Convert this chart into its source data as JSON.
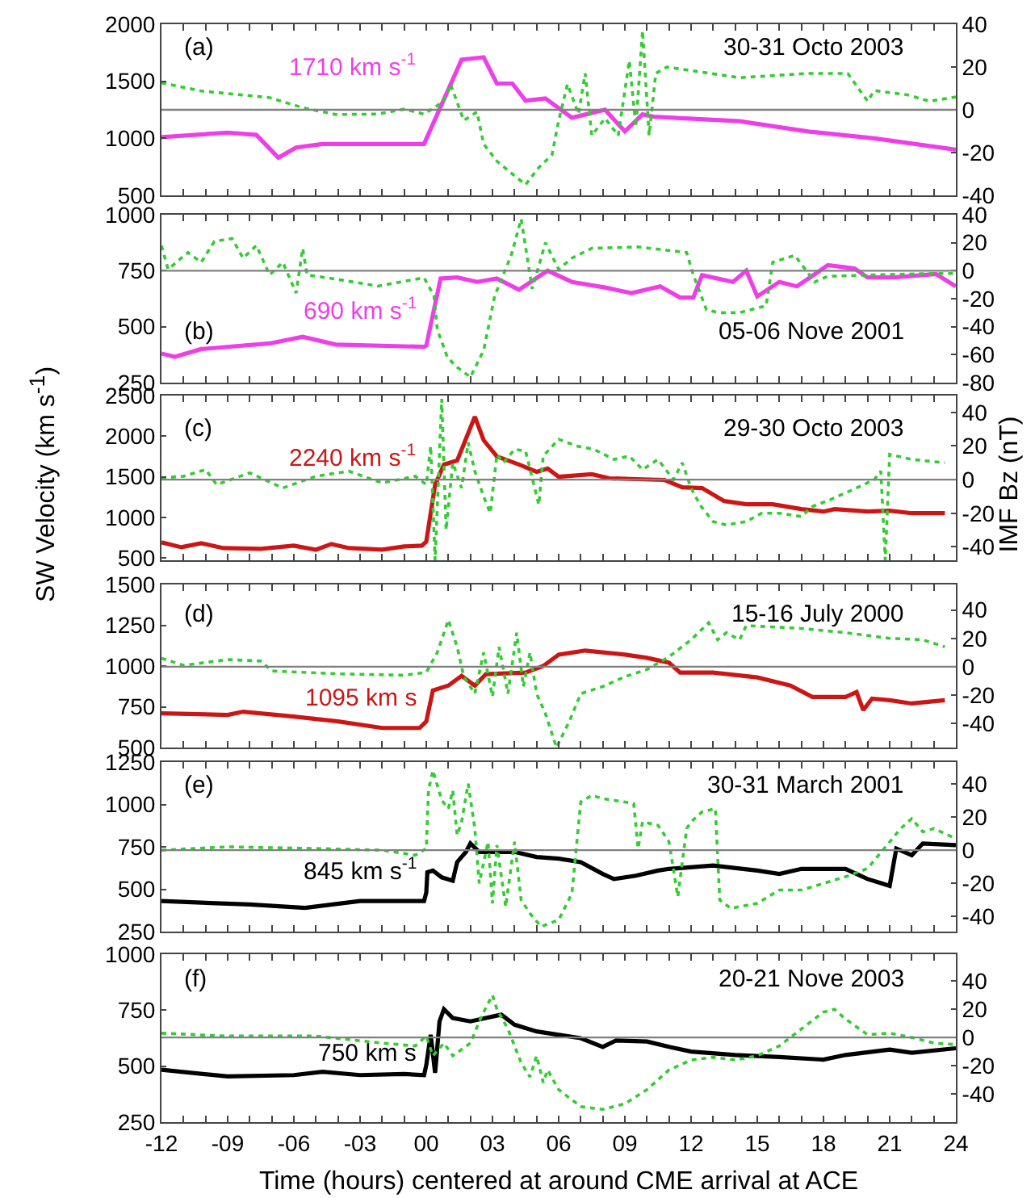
{
  "chart_data": [
    {
      "type": "line",
      "xlim": [
        -12,
        24
      ],
      "xticks": [
        -12,
        -11,
        -10,
        -9,
        -8,
        -7,
        -6,
        -5,
        -4,
        -3,
        -2,
        -1,
        0,
        1,
        2,
        3,
        4,
        5,
        6,
        7,
        8,
        9,
        10,
        11,
        12,
        13,
        14,
        15,
        16,
        17,
        18,
        19,
        20,
        21,
        22,
        23,
        24
      ],
      "ylim": [
        500,
        2000
      ],
      "yticks": [
        500,
        1000,
        1500,
        2000
      ],
      "y2lim": [
        -40,
        40
      ],
      "y2ticks": [
        -40,
        -20,
        0,
        20,
        40
      ],
      "tick_labels": "y",
      "annotations": [
        "(a)",
        "30-31 Octo 2003"
      ],
      "ref_lines": [
        {
          "axis": "y2",
          "value": 0,
          "color": "#808080"
        }
      ],
      "series": [
        {
          "name": "1710 km s$^{-1}$",
          "color": "#ee3ee8",
          "x": [
            -12,
            -9,
            -7.7,
            -6.7,
            -5.9,
            -4.7,
            -0.1,
            1.6,
            2.6,
            3.2,
            3.9,
            4.5,
            5.4,
            6.6,
            8.1,
            9.0,
            9.8,
            10.3,
            11.2,
            14.2,
            17.3,
            20.3,
            24
          ],
          "values": [
            1010,
            1050,
            1030,
            830,
            920,
            950,
            950,
            1690,
            1710,
            1480,
            1480,
            1330,
            1350,
            1180,
            1250,
            1060,
            1210,
            1190,
            1180,
            1150,
            1060,
            1000,
            900
          ]
        },
        {
          "color": "#33cc33",
          "axis": "y2",
          "line_style": "dotted",
          "x": [
            -12,
            -10.2,
            -8.6,
            -7.1,
            -5.6,
            -4.1,
            -2.2,
            -1.0,
            -0.1,
            0.8,
            1.1,
            1.7,
            2.3,
            2.6,
            3.2,
            3.9,
            4.5,
            5.1,
            5.7,
            6.0,
            6.4,
            6.9,
            7.2,
            7.5,
            8.1,
            8.7,
            9.2,
            9.5,
            9.8,
            10.1,
            10.4,
            10.9,
            14.2,
            17.3,
            19.1,
            20.0,
            20.3,
            21.8,
            22.8,
            24
          ],
          "values": [
            12.6,
            8.8,
            7.2,
            5.7,
            1,
            -2.2,
            -2,
            0.3,
            -2,
            4,
            12,
            -5,
            -1,
            -16,
            -24,
            -30,
            -35,
            -27,
            -21,
            -5,
            12,
            -2,
            17,
            -12,
            -4,
            -12,
            23,
            -8,
            37,
            -12,
            17,
            20,
            15,
            17,
            17,
            4,
            9,
            7,
            4,
            6
          ]
        }
      ]
    },
    {
      "type": "line",
      "xlim": [
        -12,
        24
      ],
      "xticks": [
        -12,
        -11,
        -10,
        -9,
        -8,
        -7,
        -6,
        -5,
        -4,
        -3,
        -2,
        -1,
        0,
        1,
        2,
        3,
        4,
        5,
        6,
        7,
        8,
        9,
        10,
        11,
        12,
        13,
        14,
        15,
        16,
        17,
        18,
        19,
        20,
        21,
        22,
        23,
        24
      ],
      "ylim": [
        250,
        1000
      ],
      "yticks": [
        250,
        500,
        750,
        1000
      ],
      "y2lim": [
        -80,
        40
      ],
      "y2ticks": [
        -80,
        -60,
        -40,
        -20,
        0,
        20,
        40
      ],
      "tick_labels": "y",
      "annotations": [
        "(b)",
        "05-06 Nove 2001"
      ],
      "ref_lines": [
        {
          "axis": "y2",
          "value": 0,
          "color": "#808080"
        }
      ],
      "series": [
        {
          "name": "690 km s$^{-1}$",
          "color": "#ee3ee8",
          "x": [
            -12,
            -11.4,
            -10.2,
            -7.1,
            -5.6,
            -4.1,
            -0.1,
            0,
            0.65,
            1.4,
            2.3,
            3.2,
            4.2,
            5.5,
            6.6,
            8.1,
            9.3,
            10.6,
            11.5,
            12.1,
            12.5,
            13.9,
            14.5,
            15.0,
            16.0,
            16.8,
            18.2,
            19.4,
            20.0,
            21.2,
            23.1,
            24
          ],
          "values": [
            380,
            365,
            400,
            425,
            455,
            420,
            410,
            415,
            715,
            720,
            700,
            715,
            665,
            750,
            700,
            675,
            650,
            680,
            630,
            630,
            730,
            700,
            750,
            635,
            700,
            680,
            775,
            760,
            720,
            720,
            735,
            680
          ]
        },
        {
          "color": "#33cc33",
          "axis": "y2",
          "line_style": "dotted",
          "x": [
            -12,
            -11.7,
            -10.8,
            -10.2,
            -9.6,
            -8.8,
            -8.3,
            -7.7,
            -7.1,
            -6.5,
            -5.9,
            -5.6,
            -5.4,
            -4.1,
            -2.2,
            -0.1,
            0.35,
            0.5,
            0.96,
            1.4,
            2.0,
            2.6,
            3.1,
            3.85,
            4.3,
            4.8,
            5.4,
            6.0,
            6.6,
            7.5,
            9.6,
            11.8,
            12.1,
            12.7,
            13.3,
            14.2,
            15.4,
            15.7,
            16.7,
            17.6,
            18.2,
            20.3,
            22.8,
            24
          ],
          "values": [
            18,
            1,
            13,
            6,
            21,
            23,
            9,
            18,
            -3,
            6,
            -16,
            16,
            -3,
            -6,
            -11,
            -5,
            -18,
            -42,
            -62,
            -69,
            -76,
            -57,
            -18,
            11,
            37,
            -13,
            20,
            1,
            9,
            16,
            17,
            13,
            -3,
            -28,
            -30,
            -30,
            -25,
            6,
            11,
            -8,
            -4,
            -3,
            -2,
            -2
          ]
        }
      ]
    },
    {
      "type": "line",
      "xlim": [
        -12,
        24
      ],
      "xticks": [
        -12,
        -11,
        -10,
        -9,
        -8,
        -7,
        -6,
        -5,
        -4,
        -3,
        -2,
        -1,
        0,
        1,
        2,
        3,
        4,
        5,
        6,
        7,
        8,
        9,
        10,
        11,
        12,
        13,
        14,
        15,
        16,
        17,
        18,
        19,
        20,
        21,
        22,
        23,
        24
      ],
      "ylim": [
        470,
        2500
      ],
      "yticks": [
        500,
        1000,
        1500,
        2000,
        2500
      ],
      "y2lim": [
        -48,
        50
      ],
      "y2ticks": [
        -40,
        -20,
        0,
        20,
        40
      ],
      "tick_labels": "y",
      "ylabel": "SW Velocity (km s$^{-1}$)",
      "y2label": "IMF Bz (nT)",
      "annotations": [
        "(c)",
        "29-30 Octo 2003"
      ],
      "ref_lines": [
        {
          "axis": "y2",
          "value": 0,
          "color": "#808080"
        }
      ],
      "series": [
        {
          "name": "2240 km s$^{-1}$",
          "color": "#cc1616",
          "x": [
            -12,
            -11.1,
            -10.2,
            -9.2,
            -7.5,
            -6,
            -5,
            -4.3,
            -3.5,
            -2,
            -1,
            -0.2,
            0,
            0.4,
            0.8,
            1.4,
            1.7,
            2.2,
            2.6,
            3.2,
            4.2,
            5.0,
            5.5,
            6.0,
            7.5,
            8.3,
            9.5,
            10.8,
            11.6,
            12.5,
            13.5,
            14.5,
            15.7,
            17,
            18,
            18.5,
            20,
            21,
            22,
            23.5
          ],
          "values": [
            690,
            630,
            680,
            620,
            610,
            650,
            600,
            670,
            620,
            600,
            640,
            650,
            700,
            1400,
            1650,
            1700,
            1900,
            2240,
            1950,
            1750,
            1650,
            1560,
            1600,
            1500,
            1530,
            1480,
            1470,
            1460,
            1370,
            1360,
            1200,
            1160,
            1160,
            1100,
            1070,
            1100,
            1070,
            1080,
            1050,
            1050
          ]
        },
        {
          "color": "#33cc33",
          "axis": "y2",
          "line_style": "dotted",
          "x": [
            -12,
            -11,
            -10,
            -9.5,
            -8,
            -6.5,
            -5,
            -3.5,
            -2,
            -0.5,
            0,
            0.2,
            0.4,
            0.7,
            0.9,
            1.2,
            1.6,
            1.9,
            2.2,
            2.6,
            2.9,
            3.2,
            3.5,
            4.0,
            4.5,
            5.1,
            5.3,
            6.0,
            6.8,
            7.6,
            8.5,
            9.2,
            9.8,
            10.5,
            11.2,
            11.6,
            12,
            12.4,
            13,
            13.6,
            14.5,
            15.2,
            16,
            17,
            17.5,
            18.3,
            19.5,
            20.3,
            20.6,
            20.8,
            21,
            22,
            23.5
          ],
          "values": [
            1,
            2,
            6,
            -3,
            4,
            -5,
            2,
            5,
            -2,
            2,
            -3,
            20,
            -48,
            48,
            -30,
            10,
            -5,
            22,
            5,
            -10,
            -20,
            15,
            10,
            18,
            17,
            -15,
            14,
            24,
            20,
            18,
            12,
            14,
            6,
            12,
            0,
            10,
            -5,
            -15,
            -25,
            -27,
            -25,
            -20,
            -20,
            -22,
            -16,
            -12,
            -5,
            0,
            5,
            -48,
            15,
            12,
            10
          ]
        }
      ]
    },
    {
      "type": "line",
      "xlim": [
        -12,
        24
      ],
      "xticks": [
        -12,
        -11,
        -10,
        -9,
        -8,
        -7,
        -6,
        -5,
        -4,
        -3,
        -2,
        -1,
        0,
        1,
        2,
        3,
        4,
        5,
        6,
        7,
        8,
        9,
        10,
        11,
        12,
        13,
        14,
        15,
        16,
        17,
        18,
        19,
        20,
        21,
        22,
        23,
        24
      ],
      "ylim": [
        500,
        1500
      ],
      "yticks": [
        500,
        750,
        1000,
        1250,
        1500
      ],
      "y2lim": [
        -57,
        58
      ],
      "y2ticks": [
        -40,
        -20,
        0,
        20,
        40
      ],
      "tick_labels": "y",
      "annotations": [
        "(d)",
        "15-16 July 2000"
      ],
      "ref_lines": [
        {
          "axis": "y2",
          "value": 0,
          "color": "#808080"
        }
      ],
      "series": [
        {
          "name": "1095 km s",
          "color": "#cc1616",
          "x": [
            -12,
            -9,
            -8.3,
            -6,
            -4,
            -2,
            -0.3,
            0,
            0.3,
            1,
            1.6,
            2.2,
            2.7,
            4.5,
            5.3,
            6,
            6.5,
            7.2,
            9,
            10,
            11,
            11.5,
            13,
            15,
            16.5,
            17.5,
            19,
            19.5,
            19.8,
            20.2,
            21,
            22,
            23.5
          ],
          "values": [
            710,
            700,
            720,
            690,
            660,
            620,
            620,
            660,
            850,
            880,
            940,
            880,
            950,
            960,
            1000,
            1070,
            1080,
            1095,
            1070,
            1050,
            1020,
            960,
            960,
            930,
            880,
            810,
            810,
            840,
            730,
            800,
            790,
            770,
            790
          ]
        },
        {
          "color": "#33cc33",
          "axis": "y2",
          "line_style": "dotted",
          "x": [
            -12,
            -11,
            -9,
            -7.5,
            -7,
            -4,
            -1,
            0,
            0.5,
            1.0,
            1.4,
            1.7,
            2.2,
            2.6,
            3.0,
            3.3,
            3.7,
            4.1,
            4.4,
            4.7,
            5.0,
            5.4,
            5.9,
            6.5,
            7,
            8,
            9,
            10,
            11,
            12,
            12.8,
            13.2,
            13.6,
            14.2,
            14.5,
            17,
            19,
            21,
            22.5,
            23.5
          ],
          "values": [
            6,
            1,
            5,
            4,
            -3,
            -5,
            -6,
            -4,
            10,
            33,
            14,
            -7,
            -19,
            10,
            -21,
            14,
            -19,
            24,
            -14,
            10,
            -19,
            -33,
            -57,
            -38,
            -19,
            -14,
            -7,
            -2,
            7,
            19,
            31,
            19,
            24,
            19,
            29,
            27,
            24,
            20,
            19,
            14
          ]
        }
      ]
    },
    {
      "type": "line",
      "xlim": [
        -12,
        24
      ],
      "xticks": [
        -12,
        -11,
        -10,
        -9,
        -8,
        -7,
        -6,
        -5,
        -4,
        -3,
        -2,
        -1,
        0,
        1,
        2,
        3,
        4,
        5,
        6,
        7,
        8,
        9,
        10,
        11,
        12,
        13,
        14,
        15,
        16,
        17,
        18,
        19,
        20,
        21,
        22,
        23,
        24
      ],
      "ylim": [
        250,
        1250
      ],
      "yticks": [
        250,
        500,
        750,
        1000,
        1250
      ],
      "y2lim": [
        -49,
        53
      ],
      "y2ticks": [
        -40,
        -20,
        0,
        20,
        40
      ],
      "tick_labels": "y",
      "annotations": [
        "(e)",
        "30-31 March 2001"
      ],
      "ref_lines": [
        {
          "axis": "y2",
          "value": 0,
          "color": "#808080"
        }
      ],
      "series": [
        {
          "name": "845 km s$^{-1}$",
          "color": "#000000",
          "x": [
            -12,
            -8,
            -5.5,
            -3,
            -0.1,
            0,
            0.05,
            0.3,
            0.7,
            1.2,
            1.4,
            1.8,
            2.0,
            2.4,
            3,
            4,
            5,
            6,
            7,
            8,
            8.5,
            9.5,
            10.5,
            11,
            13,
            15,
            16,
            17,
            19,
            20,
            21,
            21.3,
            22,
            22.5,
            24
          ],
          "values": [
            430,
            410,
            390,
            430,
            430,
            480,
            600,
            610,
            570,
            550,
            660,
            720,
            770,
            720,
            720,
            720,
            690,
            680,
            660,
            590,
            560,
            580,
            610,
            620,
            640,
            610,
            590,
            620,
            620,
            560,
            520,
            740,
            700,
            770,
            760
          ]
        },
        {
          "color": "#33cc33",
          "axis": "y2",
          "line_style": "dotted",
          "x": [
            -12,
            -9,
            -5,
            -2,
            -0.5,
            0,
            0.1,
            0.3,
            0.7,
            1.0,
            1.2,
            1.4,
            1.6,
            1.9,
            2.2,
            2.4,
            2.8,
            3.0,
            3.2,
            3.6,
            4.0,
            4.3,
            4.7,
            5.2,
            6,
            6.6,
            7.0,
            7.5,
            8,
            9,
            9.4,
            9.6,
            9.8,
            10.5,
            11,
            11.4,
            11.8,
            12,
            12.5,
            13.1,
            13.3,
            13.8,
            15,
            16,
            17,
            18,
            19,
            20,
            21,
            21.5,
            22,
            22.5,
            23,
            24
          ],
          "values": [
            0,
            2,
            1,
            0,
            -3,
            1,
            36,
            48,
            30,
            25,
            36,
            9,
            17,
            40,
            13,
            -20,
            5,
            -32,
            3,
            -34,
            5,
            -30,
            -38,
            -46,
            -42,
            -26,
            29,
            33,
            31,
            29,
            28,
            1,
            17,
            15,
            5,
            -28,
            13,
            17,
            23,
            25,
            -30,
            -35,
            -32,
            -24,
            -24,
            -20,
            -16,
            -11,
            5,
            13,
            19,
            11,
            13,
            7
          ]
        }
      ]
    },
    {
      "type": "line",
      "xlim": [
        -12,
        24
      ],
      "xticks": [
        -12,
        {
          "value": -11,
          "label": null
        },
        {
          "value": -10,
          "label": null
        },
        {
          "value": -9,
          "label": "-09"
        },
        {
          "value": -8,
          "label": null
        },
        {
          "value": -7,
          "label": null
        },
        {
          "value": -6,
          "label": "-06"
        },
        {
          "value": -5,
          "label": null
        },
        {
          "value": -4,
          "label": null
        },
        {
          "value": -3,
          "label": "-03"
        },
        {
          "value": -2,
          "label": null
        },
        {
          "value": -1,
          "label": null
        },
        {
          "value": 0,
          "label": "00"
        },
        {
          "value": 1,
          "label": null
        },
        {
          "value": 2,
          "label": null
        },
        {
          "value": 3,
          "label": "03"
        },
        {
          "value": 4,
          "label": null
        },
        {
          "value": 5,
          "label": null
        },
        {
          "value": 6,
          "label": "06"
        },
        {
          "value": 7,
          "label": null
        },
        {
          "value": 8,
          "label": null
        },
        {
          "value": 9,
          "label": "09"
        },
        {
          "value": 10,
          "label": null
        },
        {
          "value": 11,
          "label": null
        },
        12,
        {
          "value": 13,
          "label": null
        },
        {
          "value": 14,
          "label": null
        },
        15,
        {
          "value": 16,
          "label": null
        },
        {
          "value": 17,
          "label": null
        },
        18,
        {
          "value": 19,
          "label": null
        },
        {
          "value": 20,
          "label": null
        },
        21,
        {
          "value": 22,
          "label": null
        },
        {
          "value": 23,
          "label": null
        },
        24
      ],
      "ylim": [
        250,
        1000
      ],
      "yticks": [
        250,
        500,
        750,
        1000
      ],
      "y2lim": [
        -60,
        59
      ],
      "y2ticks": [
        -40,
        -20,
        0,
        20,
        40
      ],
      "xlabel": "Time (hours) centered at around CME arrival at ACE",
      "annotations": [
        "(f)",
        "20-21 Nove 2003"
      ],
      "ref_lines": [
        {
          "axis": "y2",
          "value": 0,
          "color": "#808080"
        }
      ],
      "series": [
        {
          "name": "750 km s",
          "color": "#000000",
          "x": [
            -12,
            -9,
            -6,
            -4.7,
            -3,
            -1,
            -0.1,
            0,
            0.2,
            0.4,
            0.6,
            0.8,
            1.2,
            2,
            3.4,
            4,
            5,
            6,
            7,
            8,
            8.6,
            10,
            11,
            12,
            14,
            16,
            18,
            19,
            21,
            22,
            24
          ],
          "values": [
            484,
            454,
            460,
            475,
            460,
            465,
            460,
            505,
            640,
            470,
            700,
            754,
            715,
            700,
            730,
            685,
            655,
            640,
            625,
            586,
            615,
            610,
            586,
            565,
            550,
            541,
            529,
            550,
            574,
            560,
            580
          ]
        },
        {
          "color": "#33cc33",
          "axis": "y2",
          "line_style": "dotted",
          "x": [
            -12,
            -9,
            -5,
            -2,
            -0.5,
            0,
            0.3,
            0.8,
            1.2,
            2,
            2.5,
            3.0,
            3.2,
            3.7,
            4.3,
            4.7,
            5.0,
            5.3,
            5.5,
            6,
            7,
            8,
            9,
            10,
            11,
            12,
            13,
            14,
            15,
            16,
            17,
            18,
            18.5,
            19,
            20,
            21,
            22,
            23,
            24
          ],
          "values": [
            3,
            1,
            1,
            -4,
            -6,
            1,
            -13,
            -4,
            -13,
            -4,
            15,
            30,
            20,
            6,
            -18,
            -28,
            -13,
            -32,
            -23,
            -37,
            -49,
            -51,
            -47,
            -37,
            -23,
            -16,
            -14,
            -16,
            -13,
            -6,
            6,
            18,
            20,
            13,
            2,
            3,
            0,
            -4,
            -5
          ]
        }
      ]
    }
  ]
}
